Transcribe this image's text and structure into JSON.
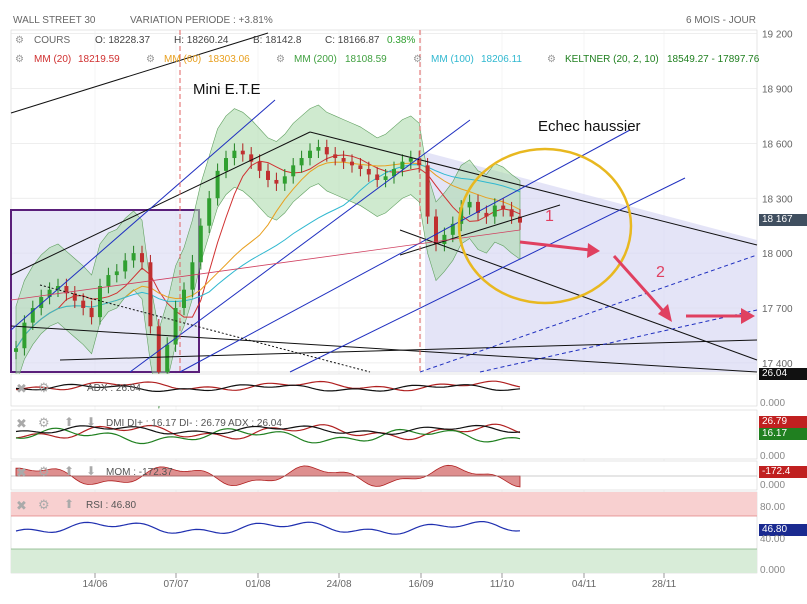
{
  "header": {
    "instrument": "WALL STREET 30",
    "variation": "VARIATION PERIODE : +3.81%",
    "period": "6 MOIS - JOUR"
  },
  "ohlc": {
    "label": "COURS",
    "open": "O: 18228.37",
    "high": "H: 18260.24",
    "low": "B: 18142.8",
    "close": "C: 18166.87",
    "change": "0.38%"
  },
  "indicators": [
    {
      "label": "MM (20)",
      "value": "18219.59",
      "color": "#d03030"
    },
    {
      "label": "MM (60)",
      "value": "18303.06",
      "color": "#e8a020"
    },
    {
      "label": "MM (200)",
      "value": "18108.59",
      "color": "#40a040"
    },
    {
      "label": "MM (100)",
      "value": "18206.11",
      "color": "#30b8d0"
    },
    {
      "label": "KELTNER (20, 2, 10)",
      "value": "18549.27 - 17897.76",
      "color": "#208020"
    }
  ],
  "annotations": {
    "mini_ete": "Mini E.T.E",
    "echec": "Echec haussier",
    "n1": "1",
    "n2": "2"
  },
  "price_badge": "18 167",
  "panels": {
    "adx": {
      "label": "ADX : 26.04",
      "badge": "26.04",
      "zero": "0.000"
    },
    "dmi": {
      "label": "DMI DI+ : 16.17 DI- : 26.79 ADX : 26.04",
      "badge_red": "26.79",
      "badge_green": "16.17",
      "zero": "0.000"
    },
    "mom": {
      "label": "MOM : -172.37",
      "badge": "-172.4",
      "zero": "0.000"
    },
    "rsi": {
      "label": "RSI : 46.80",
      "badge": "46.80",
      "t80": "80.00",
      "t40": "40.00",
      "zero": "0.000"
    }
  },
  "chart_data": {
    "type": "candlestick",
    "title": "WALL STREET 30",
    "y_ticks": [
      17400,
      17700,
      18000,
      18300,
      18600,
      18900,
      19200
    ],
    "ylim": [
      17350,
      19220
    ],
    "x_ticks": [
      "14/06",
      "07/07",
      "01/08",
      "24/08",
      "16/09",
      "11/10",
      "04/11",
      "28/11"
    ],
    "last_price": 18167,
    "moving_averages": {
      "MM (20)": 18219.59,
      "MM (60)": 18303.06,
      "MM (200)": 18108.59,
      "MM (100)": 18206.11
    },
    "keltner": [
      18549.27,
      17897.76
    ],
    "close_path": [
      17480,
      17620,
      17700,
      17760,
      17800,
      17820,
      17780,
      17740,
      17700,
      17650,
      17820,
      17880,
      17900,
      17960,
      18000,
      17950,
      17600,
      17350,
      17500,
      17700,
      17800,
      17950,
      18150,
      18300,
      18450,
      18520,
      18560,
      18540,
      18500,
      18450,
      18400,
      18380,
      18420,
      18480,
      18520,
      18560,
      18580,
      18540,
      18520,
      18500,
      18480,
      18460,
      18430,
      18400,
      18420,
      18460,
      18500,
      18520,
      18480,
      18200,
      18050,
      18100,
      18160,
      18250,
      18280,
      18220,
      18200,
      18260,
      18240,
      18200,
      18166.87
    ],
    "rsi_last": 46.8,
    "adx_last": 26.04,
    "di_plus": 16.17,
    "di_minus": 26.79,
    "momentum_last": -172.37
  }
}
